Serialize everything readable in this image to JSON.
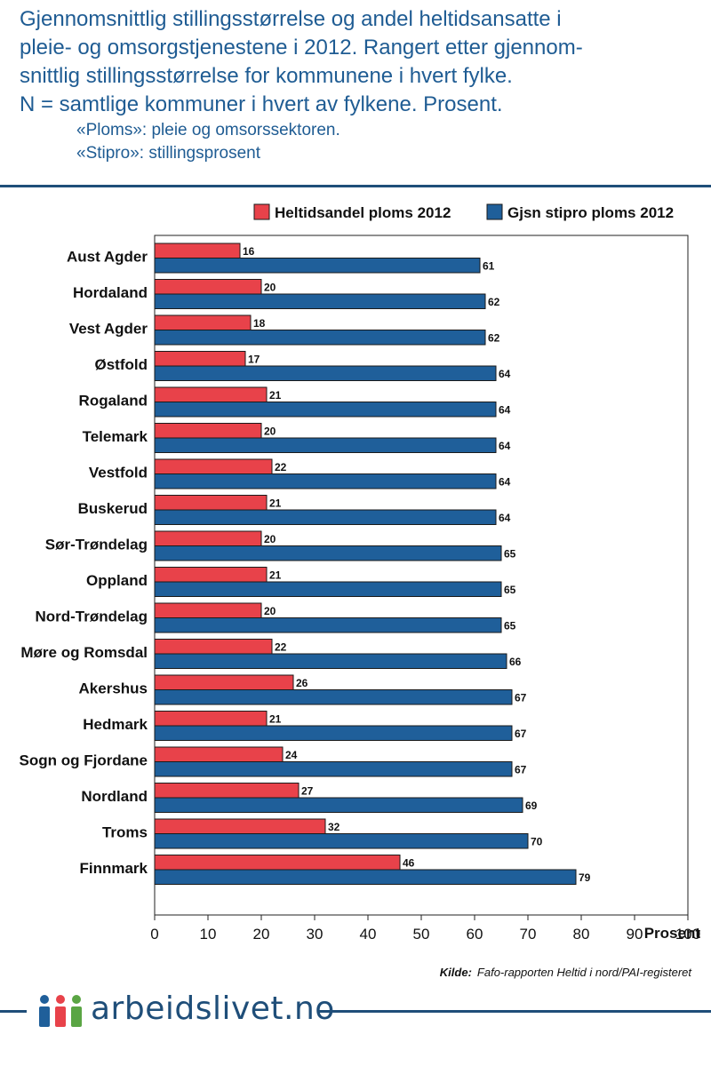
{
  "header": {
    "title_lines": [
      "Gjennomsnittlig stillingsstørrelse og andel heltidsansatte i",
      "pleie- og omsorgstjenestene i 2012. Rangert etter gjennom-",
      "snittlig stillingsstørrelse for kommunene i hvert fylke.",
      "N = samtlige kommuner i hvert av fylkene. Prosent."
    ],
    "notes": [
      "«Ploms»: pleie og omsorssektoren.",
      "«Stipro»: stillingsprosent"
    ]
  },
  "colors": {
    "series_red": "#e8424a",
    "series_blue": "#1f5f9a",
    "title_blue": "#1f5c93",
    "rule_blue": "#1f4e79",
    "logo_blue": "#1f5f9a",
    "logo_red": "#e8424a",
    "logo_green": "#5aa544"
  },
  "chart_data": {
    "type": "bar",
    "orientation": "horizontal",
    "categories": [
      "Aust Agder",
      "Hordaland",
      "Vest Agder",
      "Østfold",
      "Rogaland",
      "Telemark",
      "Vestfold",
      "Buskerud",
      "Sør-Trøndelag",
      "Oppland",
      "Nord-Trøndelag",
      "Møre og Romsdal",
      "Akershus",
      "Hedmark",
      "Sogn og Fjordane",
      "Nordland",
      "Troms",
      "Finnmark"
    ],
    "series": [
      {
        "name": "Heltidsandel ploms 2012",
        "color": "#e8424a",
        "values": [
          16,
          20,
          18,
          17,
          21,
          20,
          22,
          21,
          20,
          21,
          20,
          22,
          26,
          21,
          24,
          27,
          32,
          46
        ]
      },
      {
        "name": "Gjsn stipro ploms 2012",
        "color": "#1f5f9a",
        "values": [
          61,
          62,
          62,
          64,
          64,
          64,
          64,
          64,
          65,
          65,
          65,
          66,
          67,
          67,
          67,
          69,
          70,
          79
        ]
      }
    ],
    "xlim": [
      0,
      100
    ],
    "xticks": [
      0,
      10,
      20,
      30,
      40,
      50,
      60,
      70,
      80,
      90,
      100
    ],
    "xlabel": "Prosent",
    "legend": "top-right",
    "grid": false
  },
  "source": {
    "label": "Kilde:",
    "text": "Fafo-rapporten Heltid i nord/PAI-registeret"
  },
  "footer": {
    "brand": "arbeidslivet.no"
  }
}
